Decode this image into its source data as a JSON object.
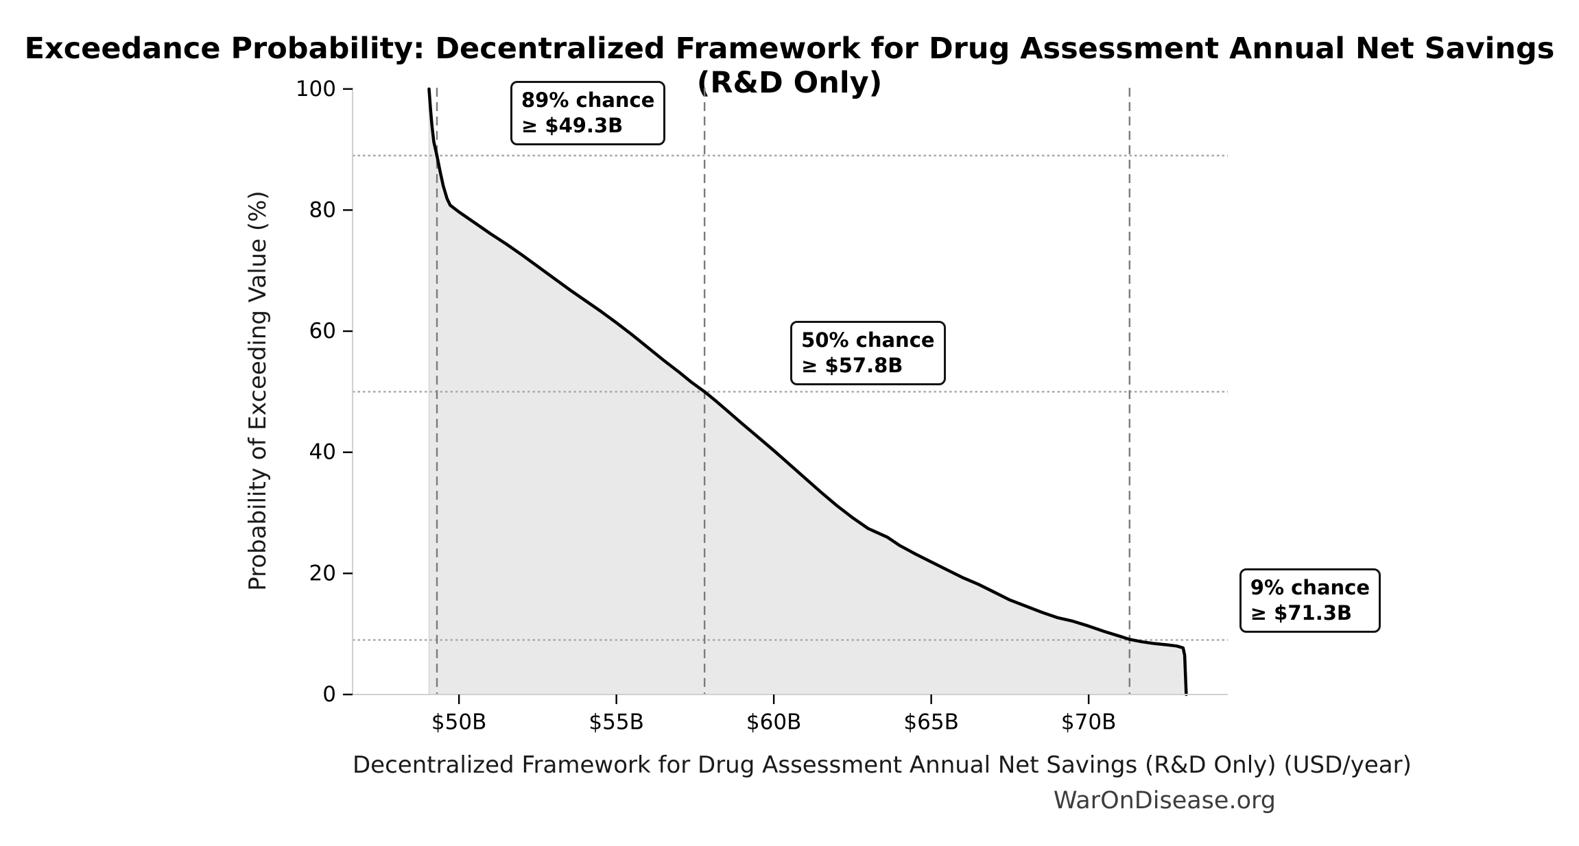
{
  "title": "Exceedance Probability: Decentralized Framework for Drug Assessment Annual Net Savings (R&D Only)",
  "watermark": "WarOnDisease.org",
  "chart_data": {
    "type": "line",
    "title": "Exceedance Probability: Decentralized Framework for Drug Assessment Annual Net Savings (R&D Only)",
    "xlabel": "Decentralized Framework for Drug Assessment Annual Net Savings (R&D Only) (USD/year)",
    "ylabel": "Probability of Exceeding Value (%)",
    "x_unit": "USD billions per year",
    "xlim": [
      46.62,
      74.42
    ],
    "ylim": [
      0,
      100.2
    ],
    "grid": "reference lines only",
    "legend": "none",
    "x_ticks": [
      {
        "value": 50,
        "label": "$50B"
      },
      {
        "value": 55,
        "label": "$55B"
      },
      {
        "value": 60,
        "label": "$60B"
      },
      {
        "value": 65,
        "label": "$65B"
      },
      {
        "value": 70,
        "label": "$70B"
      }
    ],
    "y_ticks": [
      {
        "value": 0,
        "label": "0"
      },
      {
        "value": 20,
        "label": "20"
      },
      {
        "value": 40,
        "label": "40"
      },
      {
        "value": 60,
        "label": "60"
      },
      {
        "value": 80,
        "label": "80"
      },
      {
        "value": 100,
        "label": "100"
      }
    ],
    "series": [
      {
        "name": "exceedance-curve",
        "fill_to_zero": true,
        "points_x_billions_y_pct": [
          [
            49.05,
            100
          ],
          [
            49.09,
            97
          ],
          [
            49.14,
            94
          ],
          [
            49.2,
            91.3
          ],
          [
            49.3,
            89
          ],
          [
            49.4,
            86.4
          ],
          [
            49.5,
            84
          ],
          [
            49.62,
            81.9
          ],
          [
            49.72,
            80.8
          ],
          [
            50,
            79.7
          ],
          [
            50.5,
            77.9
          ],
          [
            51,
            76.1
          ],
          [
            51.5,
            74.4
          ],
          [
            52,
            72.6
          ],
          [
            52.5,
            70.7
          ],
          [
            53,
            68.8
          ],
          [
            53.5,
            66.9
          ],
          [
            54,
            65.1
          ],
          [
            54.5,
            63.3
          ],
          [
            55,
            61.4
          ],
          [
            55.5,
            59.4
          ],
          [
            56,
            57.3
          ],
          [
            56.5,
            55.2
          ],
          [
            57,
            53.2
          ],
          [
            57.4,
            51.5
          ],
          [
            57.8,
            50
          ],
          [
            58.2,
            48.3
          ],
          [
            58.6,
            46.5
          ],
          [
            59,
            44.7
          ],
          [
            59.5,
            42.5
          ],
          [
            60,
            40.3
          ],
          [
            60.5,
            38
          ],
          [
            61,
            35.7
          ],
          [
            61.5,
            33.4
          ],
          [
            62,
            31.2
          ],
          [
            62.5,
            29.2
          ],
          [
            63,
            27.4
          ],
          [
            63.6,
            26
          ],
          [
            64,
            24.6
          ],
          [
            64.5,
            23.2
          ],
          [
            65,
            21.9
          ],
          [
            65.5,
            20.6
          ],
          [
            66,
            19.3
          ],
          [
            66.5,
            18.2
          ],
          [
            67,
            16.9
          ],
          [
            67.5,
            15.6
          ],
          [
            68,
            14.6
          ],
          [
            68.5,
            13.6
          ],
          [
            69,
            12.7
          ],
          [
            69.5,
            12.1
          ],
          [
            70,
            11.3
          ],
          [
            70.5,
            10.4
          ],
          [
            71,
            9.6
          ],
          [
            71.3,
            9.1
          ],
          [
            71.7,
            8.7
          ],
          [
            72.1,
            8.4
          ],
          [
            72.5,
            8.2
          ],
          [
            72.8,
            8
          ],
          [
            73,
            7.7
          ],
          [
            73.05,
            6.5
          ],
          [
            73.1,
            0
          ]
        ]
      }
    ],
    "reference_lines": {
      "vertical_dashed_x_billions": [
        49.3,
        57.8,
        71.3
      ],
      "horizontal_dotted_pct": [
        89,
        50,
        9
      ]
    },
    "annotations": [
      {
        "line1": "89% chance",
        "line2": "≥ $49.3B",
        "anchor_x_billions": 49.3,
        "anchor_pct": 89
      },
      {
        "line1": "50% chance",
        "line2": "≥ $57.8B",
        "anchor_x_billions": 57.8,
        "anchor_pct": 50
      },
      {
        "line1": "9% chance",
        "line2": "≥ $71.3B",
        "anchor_x_billions": 71.3,
        "anchor_pct": 9
      }
    ],
    "colors": {
      "curve": "#000000",
      "fill": "#e9e9e9",
      "fill_edge": "#d6d6d6",
      "dashed_line": "#7b7b7b",
      "dotted_line": "#aaaaaa",
      "spine": "#d0d0d0",
      "tick": "#000000",
      "annotation_border": "#141414",
      "watermark_text": "#3d3d3d"
    }
  }
}
